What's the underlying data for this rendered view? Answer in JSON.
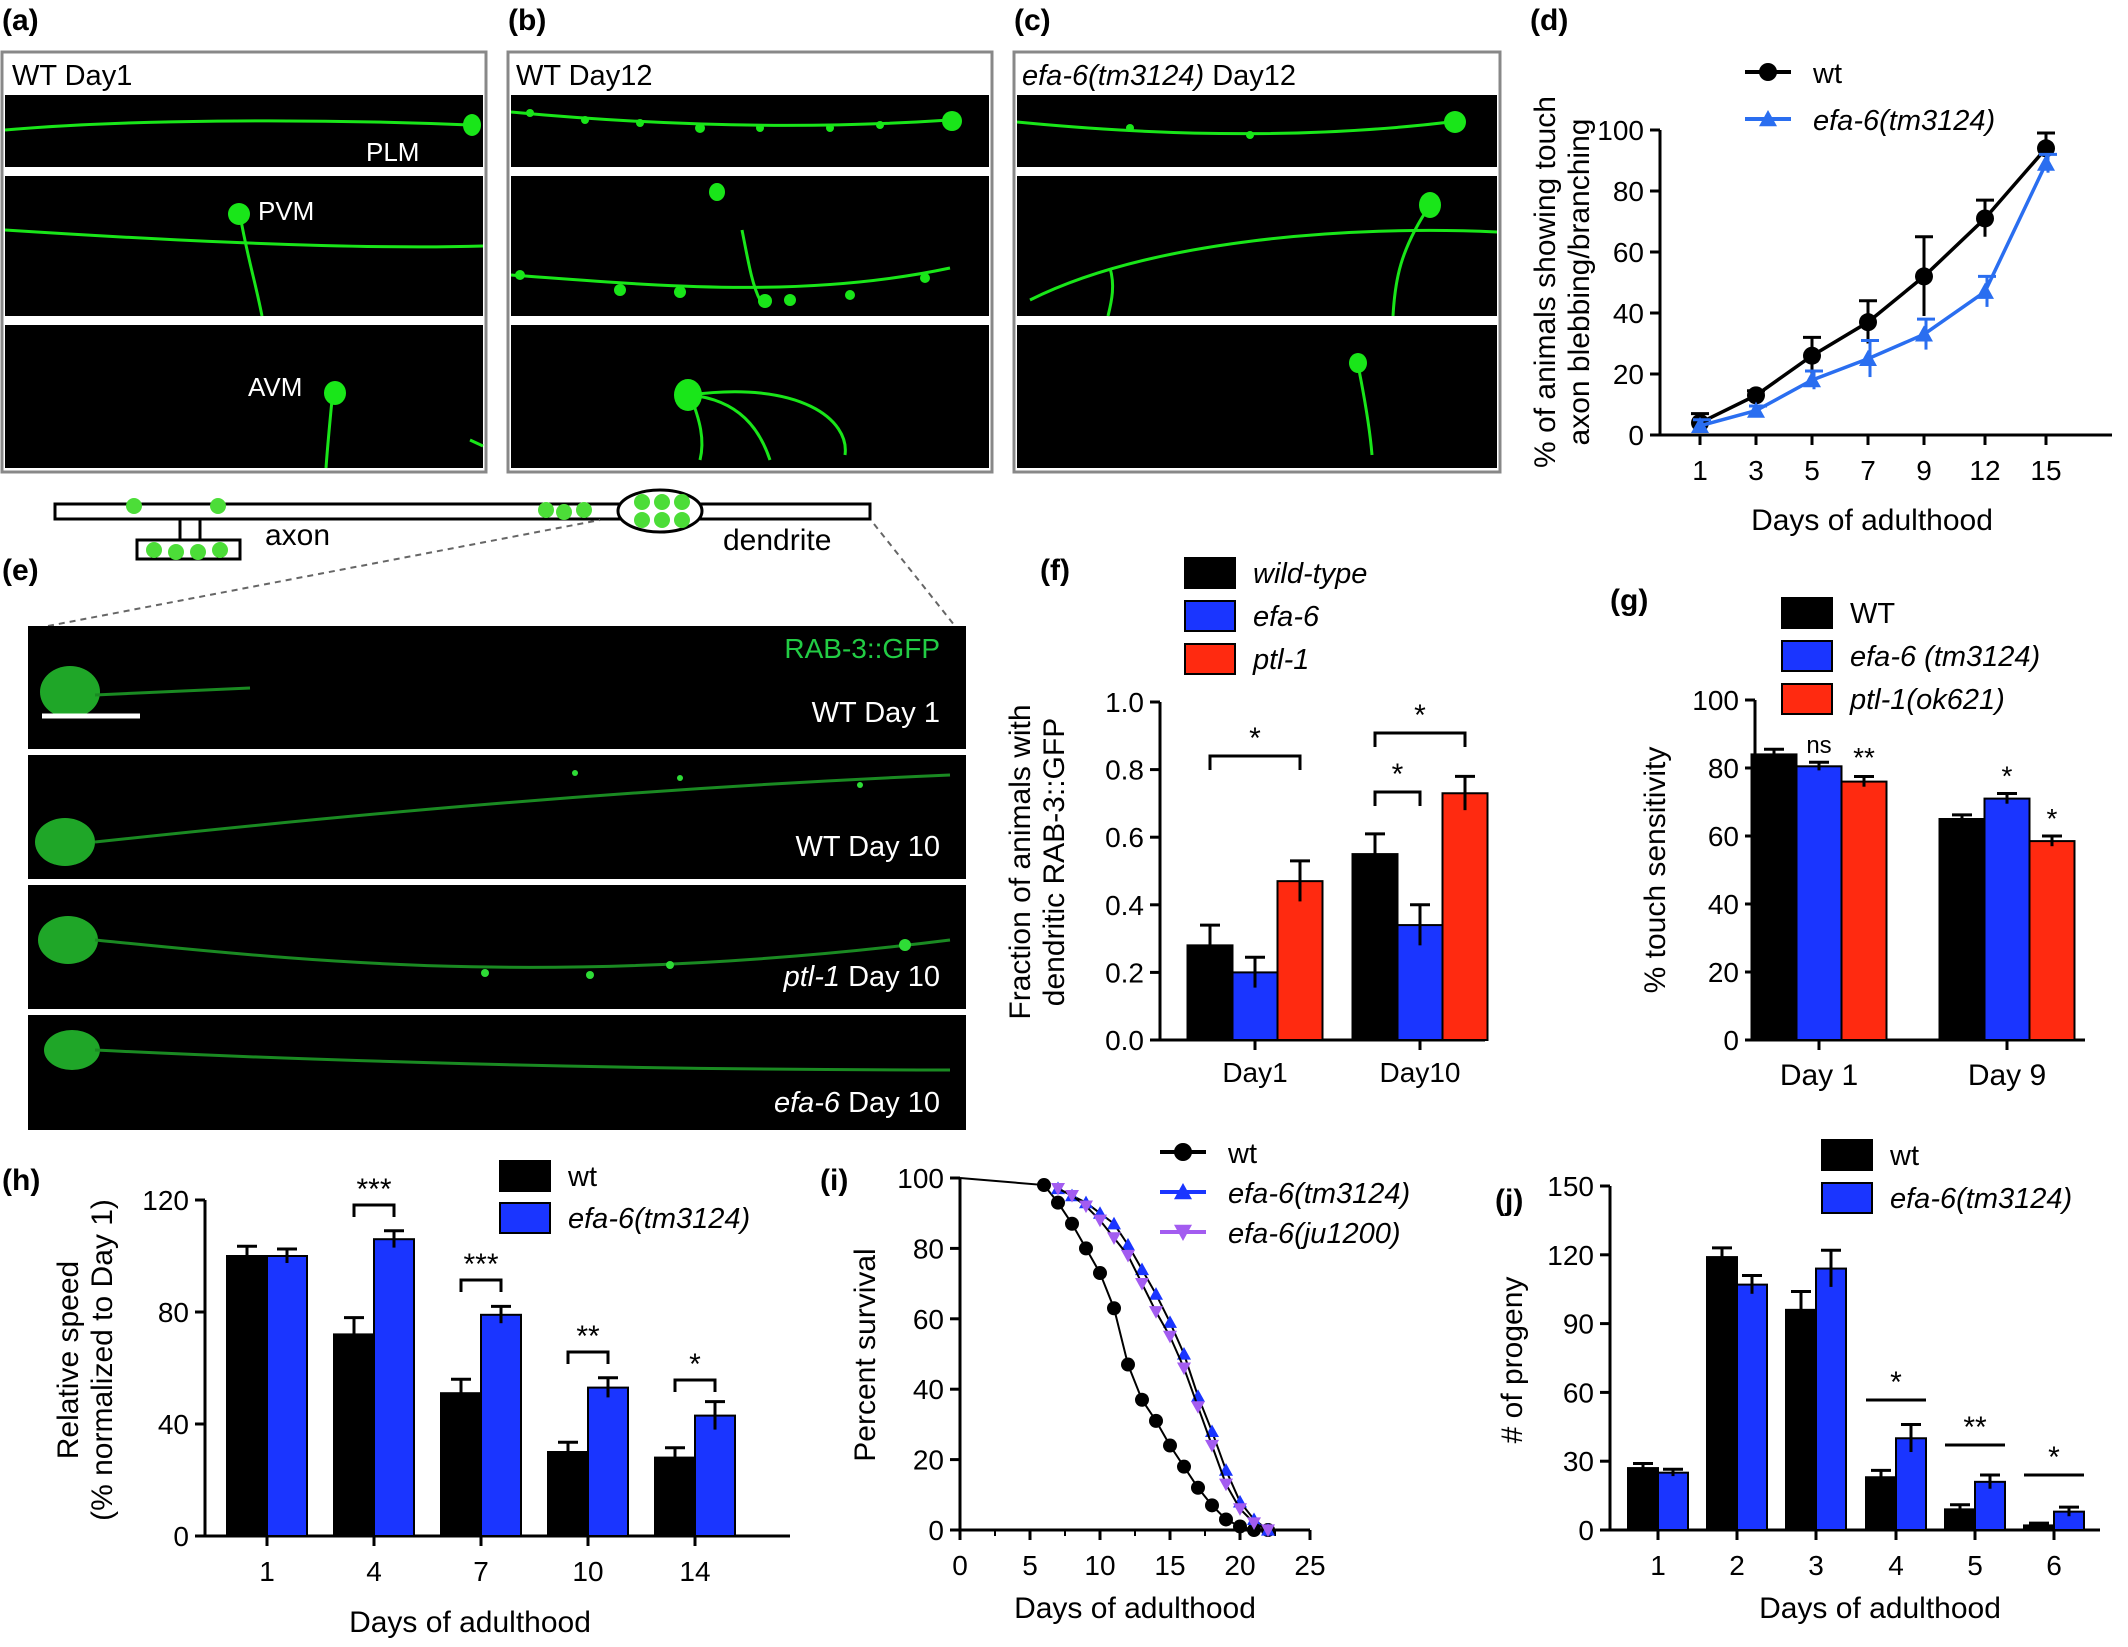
{
  "panels": {
    "a": {
      "label": "(a)",
      "title": "WT Day1",
      "neuron_labels": [
        "PLM",
        "PVM",
        "AVM"
      ]
    },
    "b": {
      "label": "(b)",
      "title": "WT Day12"
    },
    "c": {
      "label": "(c)",
      "title_italic": "efa-6(tm3124)",
      "title_rest": " Day12"
    },
    "e": {
      "label": "(e)",
      "schematic": {
        "axon_label": "axon",
        "dendrite_label": "dendrite"
      },
      "marker_label": "RAB-3::GFP",
      "images": [
        {
          "italic": "",
          "rest": "WT Day 1"
        },
        {
          "italic": "",
          "rest": "WT Day 10"
        },
        {
          "italic": "ptl-1",
          "rest": " Day 10"
        },
        {
          "italic": "efa-6",
          "rest": "  Day 10"
        }
      ]
    }
  },
  "colors": {
    "gfp": "#19e619",
    "black_series": "#000000",
    "blue_series": "#1a35ff",
    "blue_line": "#2a6ef0",
    "red_series": "#ff2a10",
    "purple_series": "#a35cf0",
    "micrograph_bg": "#000000",
    "marker_text": "#22cc44"
  },
  "chart_data": [
    {
      "id": "d",
      "panel_label": "(d)",
      "type": "line",
      "x": [
        1,
        3,
        5,
        7,
        9,
        12,
        15
      ],
      "x_tick_labels": [
        "1",
        "3",
        "5",
        "7",
        "9",
        "12",
        "15"
      ],
      "ylim": [
        0,
        100
      ],
      "yticks": [
        0,
        20,
        40,
        60,
        80,
        100
      ],
      "xlabel": "Days of adulthood",
      "ylabel": [
        "% of animals showing touch",
        "axon blebbing/branching"
      ],
      "series": [
        {
          "name": "wt",
          "italic": false,
          "marker": "circle",
          "values": [
            4,
            13,
            26,
            37,
            52,
            71,
            94
          ],
          "errors": [
            3,
            1.5,
            6,
            7,
            13,
            6,
            5
          ]
        },
        {
          "name": "efa-6(tm3124)",
          "italic": true,
          "marker": "triangle",
          "values": [
            3,
            8,
            18,
            25,
            33,
            47,
            89
          ],
          "errors": [
            2,
            1.5,
            3,
            6,
            5,
            5,
            3
          ]
        }
      ]
    },
    {
      "id": "f",
      "panel_label": "(f)",
      "type": "bar",
      "categories": [
        "Day1",
        "Day10"
      ],
      "ylim": [
        0,
        1.0
      ],
      "yticks": [
        "0.0",
        "0.2",
        "0.4",
        "0.6",
        "0.8",
        "1.0"
      ],
      "ylabel": [
        "Fraction of animals with",
        "dendritic RAB-3::GFP"
      ],
      "series": [
        {
          "name": "wild-type",
          "italic": true,
          "values": [
            0.28,
            0.55
          ],
          "errors": [
            0.06,
            0.06
          ]
        },
        {
          "name": "efa-6",
          "italic": true,
          "values": [
            0.2,
            0.34
          ],
          "errors": [
            0.045,
            0.06
          ]
        },
        {
          "name": "ptl-1",
          "italic": true,
          "values": [
            0.47,
            0.73
          ],
          "errors": [
            0.06,
            0.05
          ]
        }
      ],
      "significance": [
        "*",
        "*",
        "*"
      ]
    },
    {
      "id": "g",
      "panel_label": "(g)",
      "type": "bar",
      "categories": [
        "Day 1",
        "Day 9"
      ],
      "ylim": [
        0,
        100
      ],
      "yticks": [
        0,
        20,
        40,
        60,
        80,
        100
      ],
      "ylabel": "% touch sensitivity",
      "series": [
        {
          "name": "WT",
          "italic": false,
          "values": [
            84,
            65
          ],
          "errors": [
            1.5,
            1.2
          ]
        },
        {
          "name": "efa-6 (tm3124)",
          "italic": true,
          "values": [
            80.5,
            71
          ],
          "errors": [
            1.2,
            1.5
          ]
        },
        {
          "name": "ptl-1(ok621)",
          "italic": true,
          "values": [
            76,
            58.5
          ],
          "errors": [
            1.5,
            1.5
          ]
        }
      ],
      "annotations": [
        "ns",
        "**",
        "*",
        "*"
      ]
    },
    {
      "id": "h",
      "panel_label": "(h)",
      "type": "bar",
      "categories": [
        "1",
        "4",
        "7",
        "10",
        "14"
      ],
      "ylim": [
        0,
        120
      ],
      "yticks": [
        0,
        40,
        80,
        120
      ],
      "xlabel": "Days of adulthood",
      "ylabel": [
        "Relative speed",
        "(% normalized to Day 1)"
      ],
      "series": [
        {
          "name": "wt",
          "italic": false,
          "values": [
            100,
            72,
            51,
            30,
            28
          ],
          "errors": [
            3.5,
            6,
            5,
            3.5,
            3.5
          ]
        },
        {
          "name": "efa-6(tm3124)",
          "italic": true,
          "values": [
            100,
            106,
            79,
            53,
            43
          ],
          "errors": [
            2.5,
            3,
            3,
            3.5,
            5
          ]
        }
      ],
      "significance": [
        "***",
        "***",
        "**",
        "*"
      ]
    },
    {
      "id": "i",
      "panel_label": "(i)",
      "type": "line",
      "xlim": [
        0,
        25
      ],
      "xticks": [
        0,
        5,
        10,
        15,
        20,
        25
      ],
      "ylim": [
        0,
        100
      ],
      "yticks": [
        0,
        20,
        40,
        60,
        80,
        100
      ],
      "xlabel": "Days of adulthood",
      "ylabel": "Percent survival",
      "series": [
        {
          "name": "wt",
          "italic": false,
          "marker": "circle",
          "x": [
            0,
            6,
            7,
            8,
            9,
            10,
            11,
            12,
            13,
            14,
            15,
            16,
            17,
            18,
            19,
            20,
            21,
            22
          ],
          "y": [
            100,
            98,
            93,
            87,
            80,
            73,
            63,
            47,
            37,
            31,
            24,
            18,
            12,
            7,
            3,
            1,
            0,
            0
          ]
        },
        {
          "name": "efa-6(tm3124)",
          "italic": true,
          "marker": "triangle",
          "x": [
            7,
            8,
            9,
            10,
            11,
            12,
            13,
            14,
            15,
            16,
            17,
            18,
            19,
            20,
            21,
            22
          ],
          "y": [
            97,
            95,
            93,
            90,
            87,
            81,
            74,
            67,
            59,
            50,
            38,
            28,
            17,
            8,
            3,
            0
          ]
        },
        {
          "name": "efa-6(ju1200)",
          "italic": true,
          "marker": "triangle-down",
          "x": [
            7,
            8,
            9,
            10,
            11,
            12,
            13,
            14,
            15,
            16,
            17,
            18,
            19,
            20,
            21,
            22
          ],
          "y": [
            97,
            95,
            92,
            88,
            83,
            78,
            70,
            62,
            55,
            46,
            35,
            24,
            13,
            6,
            2,
            0
          ]
        }
      ]
    },
    {
      "id": "j",
      "panel_label": "(j)",
      "type": "bar",
      "categories": [
        "1",
        "2",
        "3",
        "4",
        "5",
        "6"
      ],
      "ylim": [
        0,
        150
      ],
      "yticks": [
        0,
        30,
        60,
        90,
        120,
        150
      ],
      "xlabel": "Days of adulthood",
      "ylabel": "# of progeny",
      "series": [
        {
          "name": "wt",
          "italic": false,
          "values": [
            27,
            119,
            96,
            23,
            9,
            2
          ],
          "errors": [
            2,
            4,
            8,
            3,
            2,
            1
          ]
        },
        {
          "name": "efa-6(tm3124)",
          "italic": true,
          "values": [
            25,
            107,
            114,
            40,
            21,
            8
          ],
          "errors": [
            1.5,
            4,
            8,
            6,
            3,
            2
          ]
        }
      ],
      "significance": [
        "*",
        "**",
        "*"
      ]
    }
  ]
}
